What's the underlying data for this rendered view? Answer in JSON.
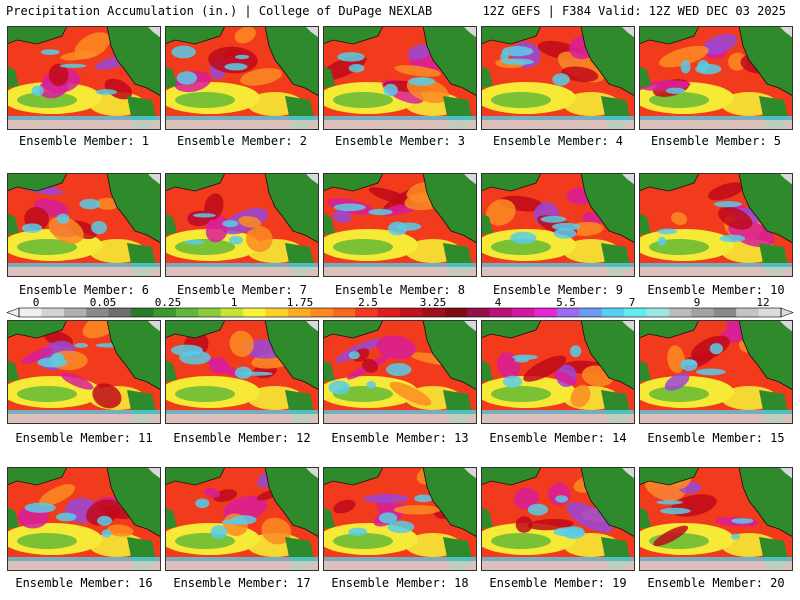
{
  "header": {
    "title": "Precipitation Accumulation (in.) | College of DuPage NEXLAB",
    "run_info": "12Z GEFS | F384 Valid: 12Z WED DEC 03 2025"
  },
  "members": [
    {
      "label": "Ensemble Member: 1"
    },
    {
      "label": "Ensemble Member: 2"
    },
    {
      "label": "Ensemble Member: 3"
    },
    {
      "label": "Ensemble Member: 4"
    },
    {
      "label": "Ensemble Member: 5"
    },
    {
      "label": "Ensemble Member: 6"
    },
    {
      "label": "Ensemble Member: 7"
    },
    {
      "label": "Ensemble Member: 8"
    },
    {
      "label": "Ensemble Member: 9"
    },
    {
      "label": "Ensemble Member: 10"
    },
    {
      "label": "Ensemble Member: 11"
    },
    {
      "label": "Ensemble Member: 12"
    },
    {
      "label": "Ensemble Member: 13"
    },
    {
      "label": "Ensemble Member: 14"
    },
    {
      "label": "Ensemble Member: 15"
    },
    {
      "label": "Ensemble Member: 16"
    },
    {
      "label": "Ensemble Member: 17"
    },
    {
      "label": "Ensemble Member: 18"
    },
    {
      "label": "Ensemble Member: 19"
    },
    {
      "label": "Ensemble Member: 20"
    }
  ],
  "colorbar": {
    "ticks": [
      "0",
      "0.05",
      "0.25",
      "1",
      "1.75",
      "2.5",
      "3.25",
      "4",
      "5.5",
      "7",
      "9",
      "12"
    ],
    "colors": [
      "#f0f0f0",
      "#d4d4d4",
      "#b0b0b0",
      "#8a8a8a",
      "#6e6e6e",
      "#2a7a2a",
      "#3c9a2c",
      "#5fb83a",
      "#8ccc3a",
      "#c8e23a",
      "#f6f23a",
      "#fcd22a",
      "#fbae24",
      "#f98a22",
      "#f66a1e",
      "#ef3c1c",
      "#de1e1e",
      "#c2141e",
      "#a0101a",
      "#7e0c12",
      "#960e4a",
      "#b81278",
      "#d416a4",
      "#e626d6",
      "#9c6cf0",
      "#6a9cf4",
      "#56d0f2",
      "#62eef0",
      "#9ae8e6",
      "#bcbcbc",
      "#a2a2a2",
      "#8a8a8a",
      "#c4c4c4",
      "#dcdcdc"
    ],
    "map_colors": {
      "ocean_dark": "#c00a1a",
      "ocean_mid": "#f23a1c",
      "orange": "#fb8c22",
      "yellow": "#f6ea36",
      "magenta": "#d81e9a",
      "purple": "#9a48d8",
      "cyan": "#58cce8",
      "land": "#2e8a2a",
      "land_light": "#5cb636",
      "ice": "#d8d8d8",
      "border": "#111111"
    }
  }
}
